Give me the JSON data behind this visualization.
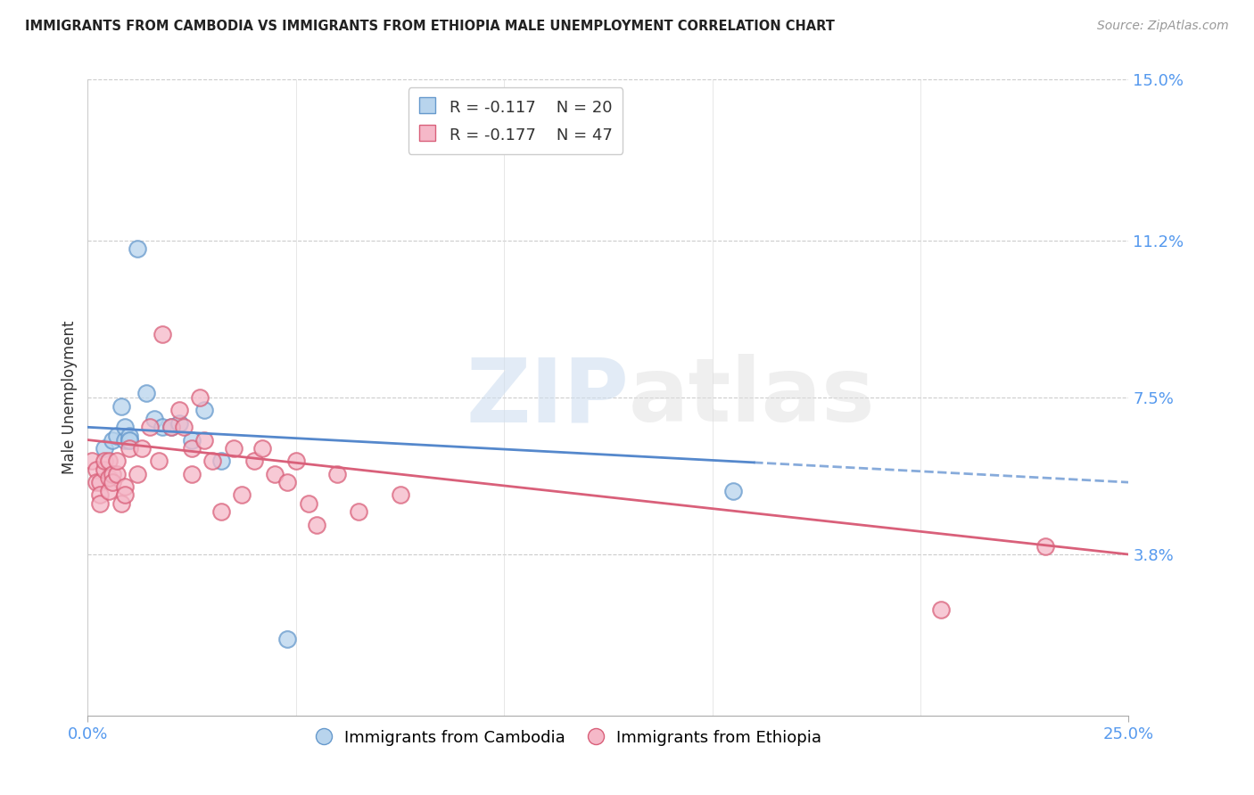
{
  "title": "IMMIGRANTS FROM CAMBODIA VS IMMIGRANTS FROM ETHIOPIA MALE UNEMPLOYMENT CORRELATION CHART",
  "source": "Source: ZipAtlas.com",
  "ylabel_label": "Male Unemployment",
  "xlim": [
    0.0,
    0.25
  ],
  "ylim": [
    0.0,
    0.15
  ],
  "ytick_positions": [
    0.038,
    0.075,
    0.112,
    0.15
  ],
  "ytick_labels": [
    "3.8%",
    "7.5%",
    "11.2%",
    "15.0%"
  ],
  "xtick_positions": [
    0.0,
    0.25
  ],
  "xtick_labels": [
    "0.0%",
    "25.0%"
  ],
  "legend_r1": "R = -0.117",
  "legend_n1": "N = 20",
  "legend_r2": "R = -0.177",
  "legend_n2": "N = 47",
  "color_cambodia_fill": "#b8d4ed",
  "color_cambodia_edge": "#6699cc",
  "color_ethiopia_fill": "#f5b8c8",
  "color_ethiopia_edge": "#d9607a",
  "color_line_cambodia": "#5588cc",
  "color_line_ethiopia": "#d9607a",
  "color_axis_ticks": "#5599ee",
  "watermark_zip": "ZIP",
  "watermark_atlas": "atlas",
  "cambodia_x": [
    0.004,
    0.006,
    0.007,
    0.008,
    0.009,
    0.009,
    0.01,
    0.01,
    0.01,
    0.012,
    0.014,
    0.016,
    0.018,
    0.02,
    0.022,
    0.025,
    0.028,
    0.032,
    0.048,
    0.155
  ],
  "cambodia_y": [
    0.063,
    0.065,
    0.066,
    0.073,
    0.065,
    0.068,
    0.065,
    0.066,
    0.065,
    0.11,
    0.076,
    0.07,
    0.068,
    0.068,
    0.069,
    0.065,
    0.072,
    0.06,
    0.018,
    0.053
  ],
  "ethiopia_x": [
    0.001,
    0.002,
    0.002,
    0.003,
    0.003,
    0.003,
    0.004,
    0.004,
    0.005,
    0.005,
    0.005,
    0.006,
    0.006,
    0.007,
    0.007,
    0.008,
    0.009,
    0.009,
    0.01,
    0.012,
    0.013,
    0.015,
    0.017,
    0.018,
    0.02,
    0.022,
    0.023,
    0.025,
    0.025,
    0.027,
    0.028,
    0.03,
    0.032,
    0.035,
    0.037,
    0.04,
    0.042,
    0.045,
    0.048,
    0.05,
    0.053,
    0.055,
    0.06,
    0.065,
    0.075,
    0.205,
    0.23
  ],
  "ethiopia_y": [
    0.06,
    0.058,
    0.055,
    0.055,
    0.052,
    0.05,
    0.058,
    0.06,
    0.053,
    0.056,
    0.06,
    0.057,
    0.055,
    0.057,
    0.06,
    0.05,
    0.054,
    0.052,
    0.063,
    0.057,
    0.063,
    0.068,
    0.06,
    0.09,
    0.068,
    0.072,
    0.068,
    0.063,
    0.057,
    0.075,
    0.065,
    0.06,
    0.048,
    0.063,
    0.052,
    0.06,
    0.063,
    0.057,
    0.055,
    0.06,
    0.05,
    0.045,
    0.057,
    0.048,
    0.052,
    0.025,
    0.04
  ],
  "cam_line_x0": 0.0,
  "cam_line_x_solid_end": 0.16,
  "cam_line_x1": 0.25,
  "eth_line_x0": 0.0,
  "eth_line_x1": 0.25
}
